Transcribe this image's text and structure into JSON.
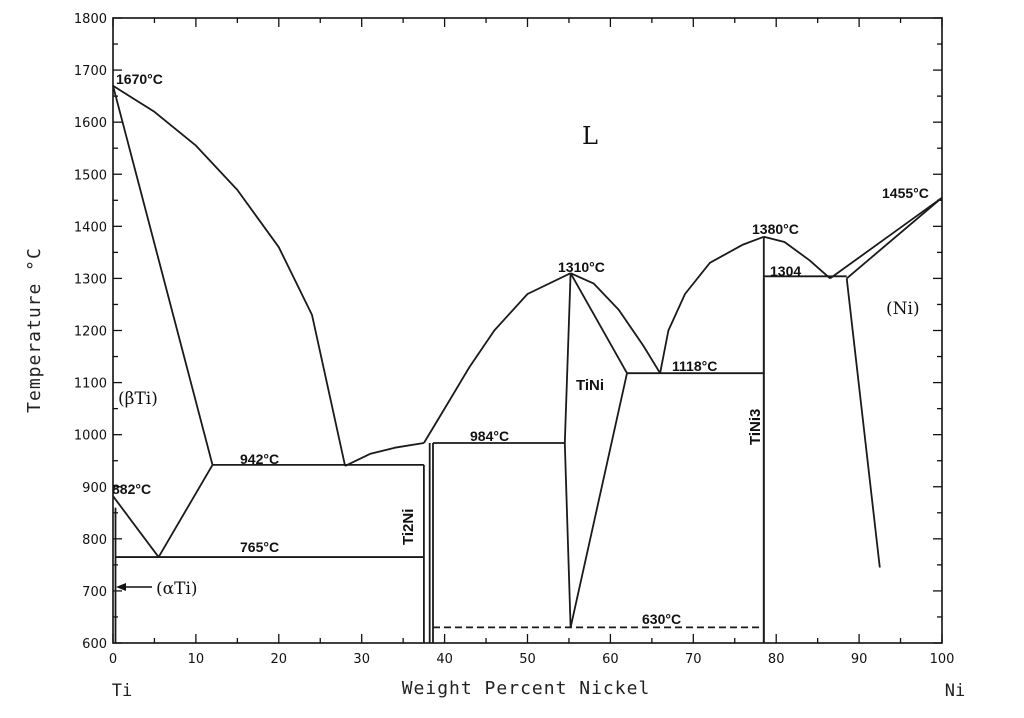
{
  "chart_data": {
    "type": "line",
    "ylabel": "Temperature °C",
    "xlabel": "Weight Percent Nickel",
    "end_labels": {
      "left": "Ti",
      "right": "Ni"
    },
    "xlim": [
      0,
      100
    ],
    "ylim": [
      600,
      1800
    ],
    "x_ticks": [
      "0",
      "10",
      "20",
      "30",
      "40",
      "50",
      "60",
      "70",
      "80",
      "90",
      "100"
    ],
    "y_ticks": [
      "600",
      "700",
      "800",
      "900",
      "1000",
      "1100",
      "1200",
      "1300",
      "1400",
      "1500",
      "1600",
      "1700",
      "1800"
    ],
    "grid": false,
    "curves": [
      {
        "kind": "liquidus",
        "points": [
          [
            0,
            1670
          ],
          [
            5,
            1620
          ],
          [
            10,
            1555
          ],
          [
            15,
            1470
          ],
          [
            20,
            1360
          ],
          [
            24,
            1230
          ],
          [
            28,
            940
          ]
        ]
      },
      {
        "kind": "solidus",
        "points": [
          [
            0,
            1670
          ],
          [
            12,
            942
          ]
        ]
      },
      {
        "kind": "liquidus",
        "points": [
          [
            28,
            940
          ],
          [
            31,
            963
          ],
          [
            34,
            975
          ],
          [
            37.5,
            984
          ]
        ]
      },
      {
        "kind": "liquidus",
        "points": [
          [
            37.5,
            984
          ],
          [
            40,
            1050
          ],
          [
            43,
            1130
          ],
          [
            46,
            1200
          ],
          [
            50,
            1270
          ],
          [
            55.2,
            1310
          ]
        ]
      },
      {
        "kind": "liquidus",
        "points": [
          [
            55.2,
            1310
          ],
          [
            58,
            1290
          ],
          [
            61,
            1240
          ],
          [
            64,
            1170
          ],
          [
            66,
            1118
          ]
        ]
      },
      {
        "kind": "solidus",
        "points": [
          [
            55.2,
            1310
          ],
          [
            62,
            1118
          ]
        ]
      },
      {
        "kind": "liquidus",
        "points": [
          [
            66,
            1118
          ],
          [
            67,
            1200
          ],
          [
            69,
            1270
          ],
          [
            72,
            1330
          ],
          [
            76,
            1365
          ],
          [
            78.5,
            1380
          ]
        ]
      },
      {
        "kind": "liquidus",
        "points": [
          [
            78.5,
            1380
          ],
          [
            81,
            1370
          ],
          [
            84,
            1335
          ],
          [
            86.5,
            1300
          ]
        ]
      },
      {
        "kind": "liquidus",
        "points": [
          [
            86.5,
            1300
          ],
          [
            100,
            1455
          ]
        ]
      },
      {
        "kind": "solidus",
        "points": [
          [
            88.5,
            1300
          ],
          [
            100,
            1455
          ]
        ]
      },
      {
        "kind": "solvus",
        "points": [
          [
            88.5,
            1300
          ],
          [
            92.5,
            745
          ]
        ]
      },
      {
        "kind": "phase-boundary",
        "points": [
          [
            0,
            882
          ],
          [
            5.5,
            765
          ]
        ]
      },
      {
        "kind": "phase-boundary",
        "points": [
          [
            5.5,
            765
          ],
          [
            12,
            942
          ]
        ]
      },
      {
        "kind": "phase-boundary",
        "points": [
          [
            0.3,
            860
          ],
          [
            0.3,
            600
          ]
        ]
      },
      {
        "kind": "phase-boundary",
        "points": [
          [
            37.5,
            942
          ],
          [
            37.5,
            600
          ]
        ]
      },
      {
        "kind": "phase-boundary",
        "points": [
          [
            38.2,
            984
          ],
          [
            38.2,
            600
          ]
        ]
      },
      {
        "kind": "phase-boundary",
        "points": [
          [
            38.6,
            984
          ],
          [
            38.6,
            600
          ]
        ]
      },
      {
        "kind": "phase-boundary",
        "points": [
          [
            55.2,
            1310
          ],
          [
            54.5,
            984
          ]
        ]
      },
      {
        "kind": "phase-boundary",
        "points": [
          [
            54.5,
            984
          ],
          [
            55.2,
            630
          ]
        ]
      },
      {
        "kind": "phase-boundary",
        "points": [
          [
            55.2,
            630
          ],
          [
            62,
            1118
          ]
        ]
      },
      {
        "kind": "phase-boundary",
        "points": [
          [
            78.5,
            1380
          ],
          [
            78.5,
            600
          ]
        ]
      },
      {
        "kind": "phase-boundary",
        "points": [
          [
            78.5,
            1300
          ],
          [
            78.5,
            600
          ]
        ]
      }
    ],
    "isotherms": [
      {
        "temp": 942,
        "x": [
          12,
          37.5
        ]
      },
      {
        "temp": 765,
        "x": [
          0.3,
          37.5
        ]
      },
      {
        "temp": 984,
        "x": [
          38.6,
          54.5
        ]
      },
      {
        "temp": 1118,
        "x": [
          62,
          78.5
        ]
      },
      {
        "temp": 1304,
        "x": [
          78.5,
          88.5
        ]
      },
      {
        "temp": 630,
        "x": [
          38.6,
          78.5
        ],
        "style": "dashed"
      }
    ],
    "annotations": {
      "t1670": "1670°C",
      "t882": "882°C",
      "t942": "942°C",
      "t765": "765°C",
      "t984": "984°C",
      "t1310": "1310°C",
      "t1118": "1118°C",
      "t1380": "1380°C",
      "t1304": "1304",
      "t1455": "1455°C",
      "t630": "630°C"
    },
    "phase_labels": {
      "liquid": "L",
      "beta_ti": "(βTi)",
      "alpha_ti": "(αTi)",
      "ti2ni": "Ti2Ni",
      "tini": "TiNi",
      "tini3": "TiNi3",
      "ni": "(Ni)"
    }
  }
}
